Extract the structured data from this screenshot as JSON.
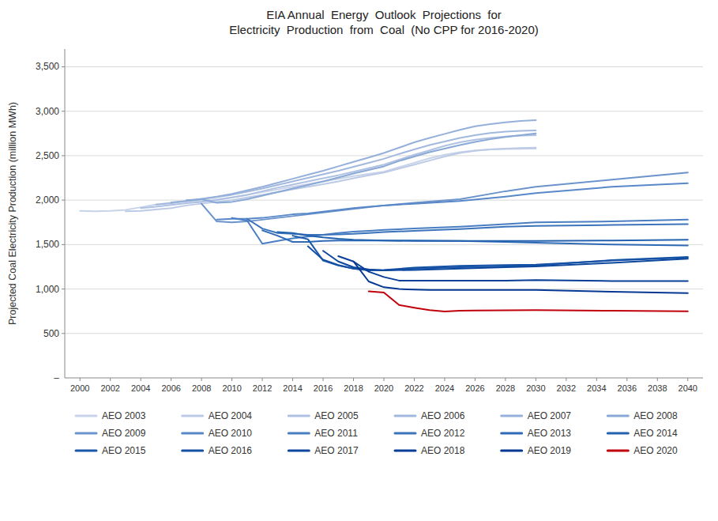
{
  "chart_data": {
    "type": "line",
    "title": "EIA Annual  Energy  Outlook  Projections  for\nElectricity  Production  from  Coal  (No CPP for 2016-2020)",
    "y_label": "Projected Coal Electricity Production (million MWh)",
    "xlim": [
      1999,
      2041
    ],
    "xticks": [
      2000,
      2002,
      2004,
      2006,
      2008,
      2010,
      2012,
      2014,
      2016,
      2018,
      2020,
      2022,
      2024,
      2026,
      2028,
      2030,
      2032,
      2034,
      2036,
      2038,
      2040
    ],
    "ylim": [
      0,
      3700
    ],
    "yticks": [
      500,
      {
        "value": 1000,
        "label": "1,000"
      },
      {
        "value": 1500,
        "label": "1,500"
      },
      {
        "value": 2000,
        "label": "2,000"
      },
      {
        "value": 2500,
        "label": "2,500"
      },
      {
        "value": 3000,
        "label": "3,000"
      },
      {
        "value": 3500,
        "label": "3,500"
      }
    ],
    "grid": true,
    "legend": "bottom",
    "annotations": [
      {
        "text": "–",
        "y": 0
      }
    ],
    "series": [
      {
        "name": "AEO 2003",
        "color": "#c8d3ea",
        "x": [
          2000,
          2001,
          2002,
          2003,
          2004,
          2005,
          2006,
          2007,
          2008,
          2009,
          2010,
          2011,
          2012,
          2013,
          2014,
          2015,
          2016,
          2017,
          2018,
          2019,
          2020,
          2021,
          2022,
          2023,
          2024,
          2025,
          2026,
          2027,
          2028,
          2029,
          2030
        ],
        "values": [
          1880,
          1875,
          1880,
          1890,
          1920,
          1950,
          1970,
          1985,
          1990,
          2010,
          2030,
          2060,
          2090,
          2120,
          2150,
          2180,
          2210,
          2240,
          2270,
          2295,
          2320,
          2370,
          2420,
          2470,
          2510,
          2540,
          2560,
          2570,
          2575,
          2577,
          2580
        ]
      },
      {
        "name": "AEO 2004",
        "color": "#bccae6",
        "x": [
          2003,
          2004,
          2005,
          2006,
          2007,
          2008,
          2009,
          2010,
          2011,
          2012,
          2013,
          2014,
          2015,
          2016,
          2017,
          2018,
          2019,
          2020,
          2021,
          2022,
          2023,
          2024,
          2025,
          2026,
          2027,
          2028,
          2029,
          2030
        ],
        "values": [
          1875,
          1880,
          1895,
          1910,
          1940,
          1960,
          1980,
          2000,
          2030,
          2060,
          2090,
          2120,
          2150,
          2180,
          2210,
          2245,
          2280,
          2310,
          2355,
          2400,
          2445,
          2490,
          2530,
          2555,
          2570,
          2580,
          2585,
          2590
        ]
      },
      {
        "name": "AEO 2005",
        "color": "#afc1e2",
        "x": [
          2004,
          2005,
          2006,
          2007,
          2008,
          2009,
          2010,
          2011,
          2012,
          2013,
          2014,
          2015,
          2016,
          2017,
          2018,
          2019,
          2020,
          2021,
          2022,
          2023,
          2024,
          2025,
          2026,
          2027,
          2028,
          2029,
          2030
        ],
        "values": [
          1910,
          1925,
          1945,
          1965,
          1980,
          2000,
          2030,
          2060,
          2100,
          2140,
          2175,
          2210,
          2245,
          2280,
          2320,
          2360,
          2400,
          2455,
          2510,
          2560,
          2610,
          2650,
          2680,
          2700,
          2715,
          2725,
          2730
        ]
      },
      {
        "name": "AEO 2006",
        "color": "#a2b8de",
        "x": [
          2005,
          2006,
          2007,
          2008,
          2009,
          2010,
          2011,
          2012,
          2013,
          2014,
          2015,
          2016,
          2017,
          2018,
          2019,
          2020,
          2021,
          2022,
          2023,
          2024,
          2025,
          2026,
          2027,
          2028,
          2029,
          2030
        ],
        "values": [
          1950,
          1965,
          1990,
          2010,
          2035,
          2060,
          2095,
          2130,
          2170,
          2210,
          2250,
          2290,
          2330,
          2375,
          2420,
          2465,
          2520,
          2570,
          2620,
          2660,
          2700,
          2730,
          2755,
          2770,
          2780,
          2785
        ]
      },
      {
        "name": "AEO 2007",
        "color": "#95b0da",
        "x": [
          2006,
          2007,
          2008,
          2009,
          2010,
          2011,
          2012,
          2013,
          2014,
          2015,
          2016,
          2017,
          2018,
          2019,
          2020,
          2021,
          2022,
          2023,
          2024,
          2025,
          2026,
          2027,
          2028,
          2029,
          2030
        ],
        "values": [
          1975,
          1990,
          2015,
          2040,
          2070,
          2110,
          2150,
          2195,
          2240,
          2285,
          2330,
          2380,
          2430,
          2480,
          2530,
          2590,
          2650,
          2700,
          2745,
          2790,
          2830,
          2855,
          2875,
          2890,
          2900
        ]
      },
      {
        "name": "AEO 2008",
        "color": "#88a8d6",
        "x": [
          2007,
          2008,
          2009,
          2010,
          2011,
          2012,
          2013,
          2014,
          2015,
          2016,
          2017,
          2018,
          2019,
          2020,
          2021,
          2022,
          2023,
          2024,
          2025,
          2026,
          2027,
          2028,
          2029,
          2030
        ],
        "values": [
          2000,
          2010,
          1970,
          1980,
          2010,
          2050,
          2090,
          2130,
          2170,
          2210,
          2255,
          2300,
          2340,
          2380,
          2440,
          2490,
          2540,
          2580,
          2620,
          2655,
          2685,
          2710,
          2730,
          2750
        ]
      },
      {
        "name": "AEO 2009",
        "color": "#6b93cc",
        "x": [
          2008,
          2009,
          2010,
          2011,
          2012,
          2013,
          2014,
          2015,
          2016,
          2017,
          2018,
          2019,
          2020,
          2022,
          2025,
          2028,
          2030,
          2035,
          2040
        ],
        "values": [
          1960,
          1760,
          1750,
          1760,
          1780,
          1800,
          1820,
          1840,
          1860,
          1880,
          1900,
          1920,
          1940,
          1970,
          2010,
          2100,
          2150,
          2230,
          2310
        ]
      },
      {
        "name": "AEO 2010",
        "color": "#5888c8",
        "x": [
          2009,
          2010,
          2011,
          2012,
          2013,
          2014,
          2015,
          2016,
          2017,
          2018,
          2019,
          2020,
          2022,
          2025,
          2028,
          2030,
          2035,
          2040
        ],
        "values": [
          1780,
          1790,
          1790,
          1800,
          1820,
          1840,
          1850,
          1870,
          1890,
          1910,
          1925,
          1940,
          1960,
          1990,
          2040,
          2080,
          2150,
          2190
        ]
      },
      {
        "name": "AEO 2011",
        "color": "#4a7ec2",
        "x": [
          2010,
          2011,
          2012,
          2013,
          2014,
          2015,
          2016,
          2017,
          2018,
          2019,
          2020,
          2022,
          2025,
          2028,
          2030,
          2035,
          2040
        ],
        "values": [
          1800,
          1770,
          1510,
          1540,
          1570,
          1590,
          1610,
          1630,
          1645,
          1655,
          1665,
          1680,
          1700,
          1730,
          1750,
          1760,
          1780
        ]
      },
      {
        "name": "AEO 2012",
        "color": "#3c74bc",
        "x": [
          2011,
          2012,
          2013,
          2014,
          2015,
          2016,
          2017,
          2018,
          2019,
          2020,
          2022,
          2025,
          2028,
          2030,
          2035,
          2040
        ],
        "values": [
          1790,
          1680,
          1630,
          1620,
          1610,
          1610,
          1615,
          1620,
          1630,
          1640,
          1655,
          1675,
          1700,
          1710,
          1720,
          1730
        ]
      },
      {
        "name": "AEO 2013",
        "color": "#2e6ab6",
        "x": [
          2012,
          2013,
          2014,
          2015,
          2016,
          2017,
          2018,
          2019,
          2020,
          2022,
          2025,
          2028,
          2030,
          2035,
          2040
        ],
        "values": [
          1660,
          1600,
          1530,
          1530,
          1540,
          1545,
          1545,
          1545,
          1545,
          1545,
          1540,
          1530,
          1520,
          1500,
          1490
        ]
      },
      {
        "name": "AEO 2014",
        "color": "#2462b0",
        "x": [
          2013,
          2014,
          2015,
          2016,
          2017,
          2018,
          2019,
          2020,
          2022,
          2025,
          2028,
          2030,
          2035,
          2040
        ],
        "values": [
          1640,
          1630,
          1600,
          1580,
          1565,
          1555,
          1550,
          1545,
          1540,
          1540,
          1540,
          1540,
          1545,
          1555
        ]
      },
      {
        "name": "AEO 2015",
        "color": "#1a58aa",
        "x": [
          2014,
          2015,
          2016,
          2017,
          2018,
          2019,
          2020,
          2022,
          2025,
          2028,
          2030,
          2035,
          2040
        ],
        "values": [
          1600,
          1560,
          1320,
          1265,
          1230,
          1215,
          1210,
          1230,
          1245,
          1255,
          1265,
          1325,
          1360
        ]
      },
      {
        "name": "AEO 2016",
        "color": "#1450a4",
        "x": [
          2015,
          2016,
          2017,
          2018,
          2019,
          2020,
          2022,
          2025,
          2028,
          2030,
          2035,
          2040
        ],
        "values": [
          1480,
          1330,
          1270,
          1230,
          1210,
          1215,
          1240,
          1260,
          1270,
          1275,
          1320,
          1355
        ]
      },
      {
        "name": "AEO 2017",
        "color": "#0d489e",
        "x": [
          2016,
          2017,
          2018,
          2019,
          2020,
          2022,
          2025,
          2028,
          2030,
          2035,
          2040
        ],
        "values": [
          1430,
          1310,
          1245,
          1220,
          1210,
          1215,
          1230,
          1245,
          1255,
          1295,
          1340
        ]
      },
      {
        "name": "AEO 2018",
        "color": "#083e98",
        "x": [
          2017,
          2018,
          2019,
          2020,
          2021,
          2022,
          2023,
          2025,
          2028,
          2030,
          2035,
          2040
        ],
        "values": [
          1370,
          1310,
          1195,
          1135,
          1095,
          1095,
          1095,
          1095,
          1095,
          1100,
          1090,
          1090
        ]
      },
      {
        "name": "AEO 2019",
        "color": "#053892",
        "x": [
          2018,
          2019,
          2020,
          2021,
          2022,
          2023,
          2025,
          2028,
          2030,
          2035,
          2040
        ],
        "values": [
          1310,
          1085,
          1020,
          1000,
          995,
          990,
          990,
          990,
          990,
          970,
          955
        ]
      },
      {
        "name": "AEO 2020",
        "color": "#c0000b",
        "x": [
          2019,
          2020,
          2021,
          2022,
          2023,
          2024,
          2025,
          2026,
          2028,
          2030,
          2035,
          2040
        ],
        "values": [
          975,
          960,
          820,
          790,
          762,
          748,
          755,
          758,
          760,
          762,
          755,
          750
        ]
      }
    ]
  }
}
